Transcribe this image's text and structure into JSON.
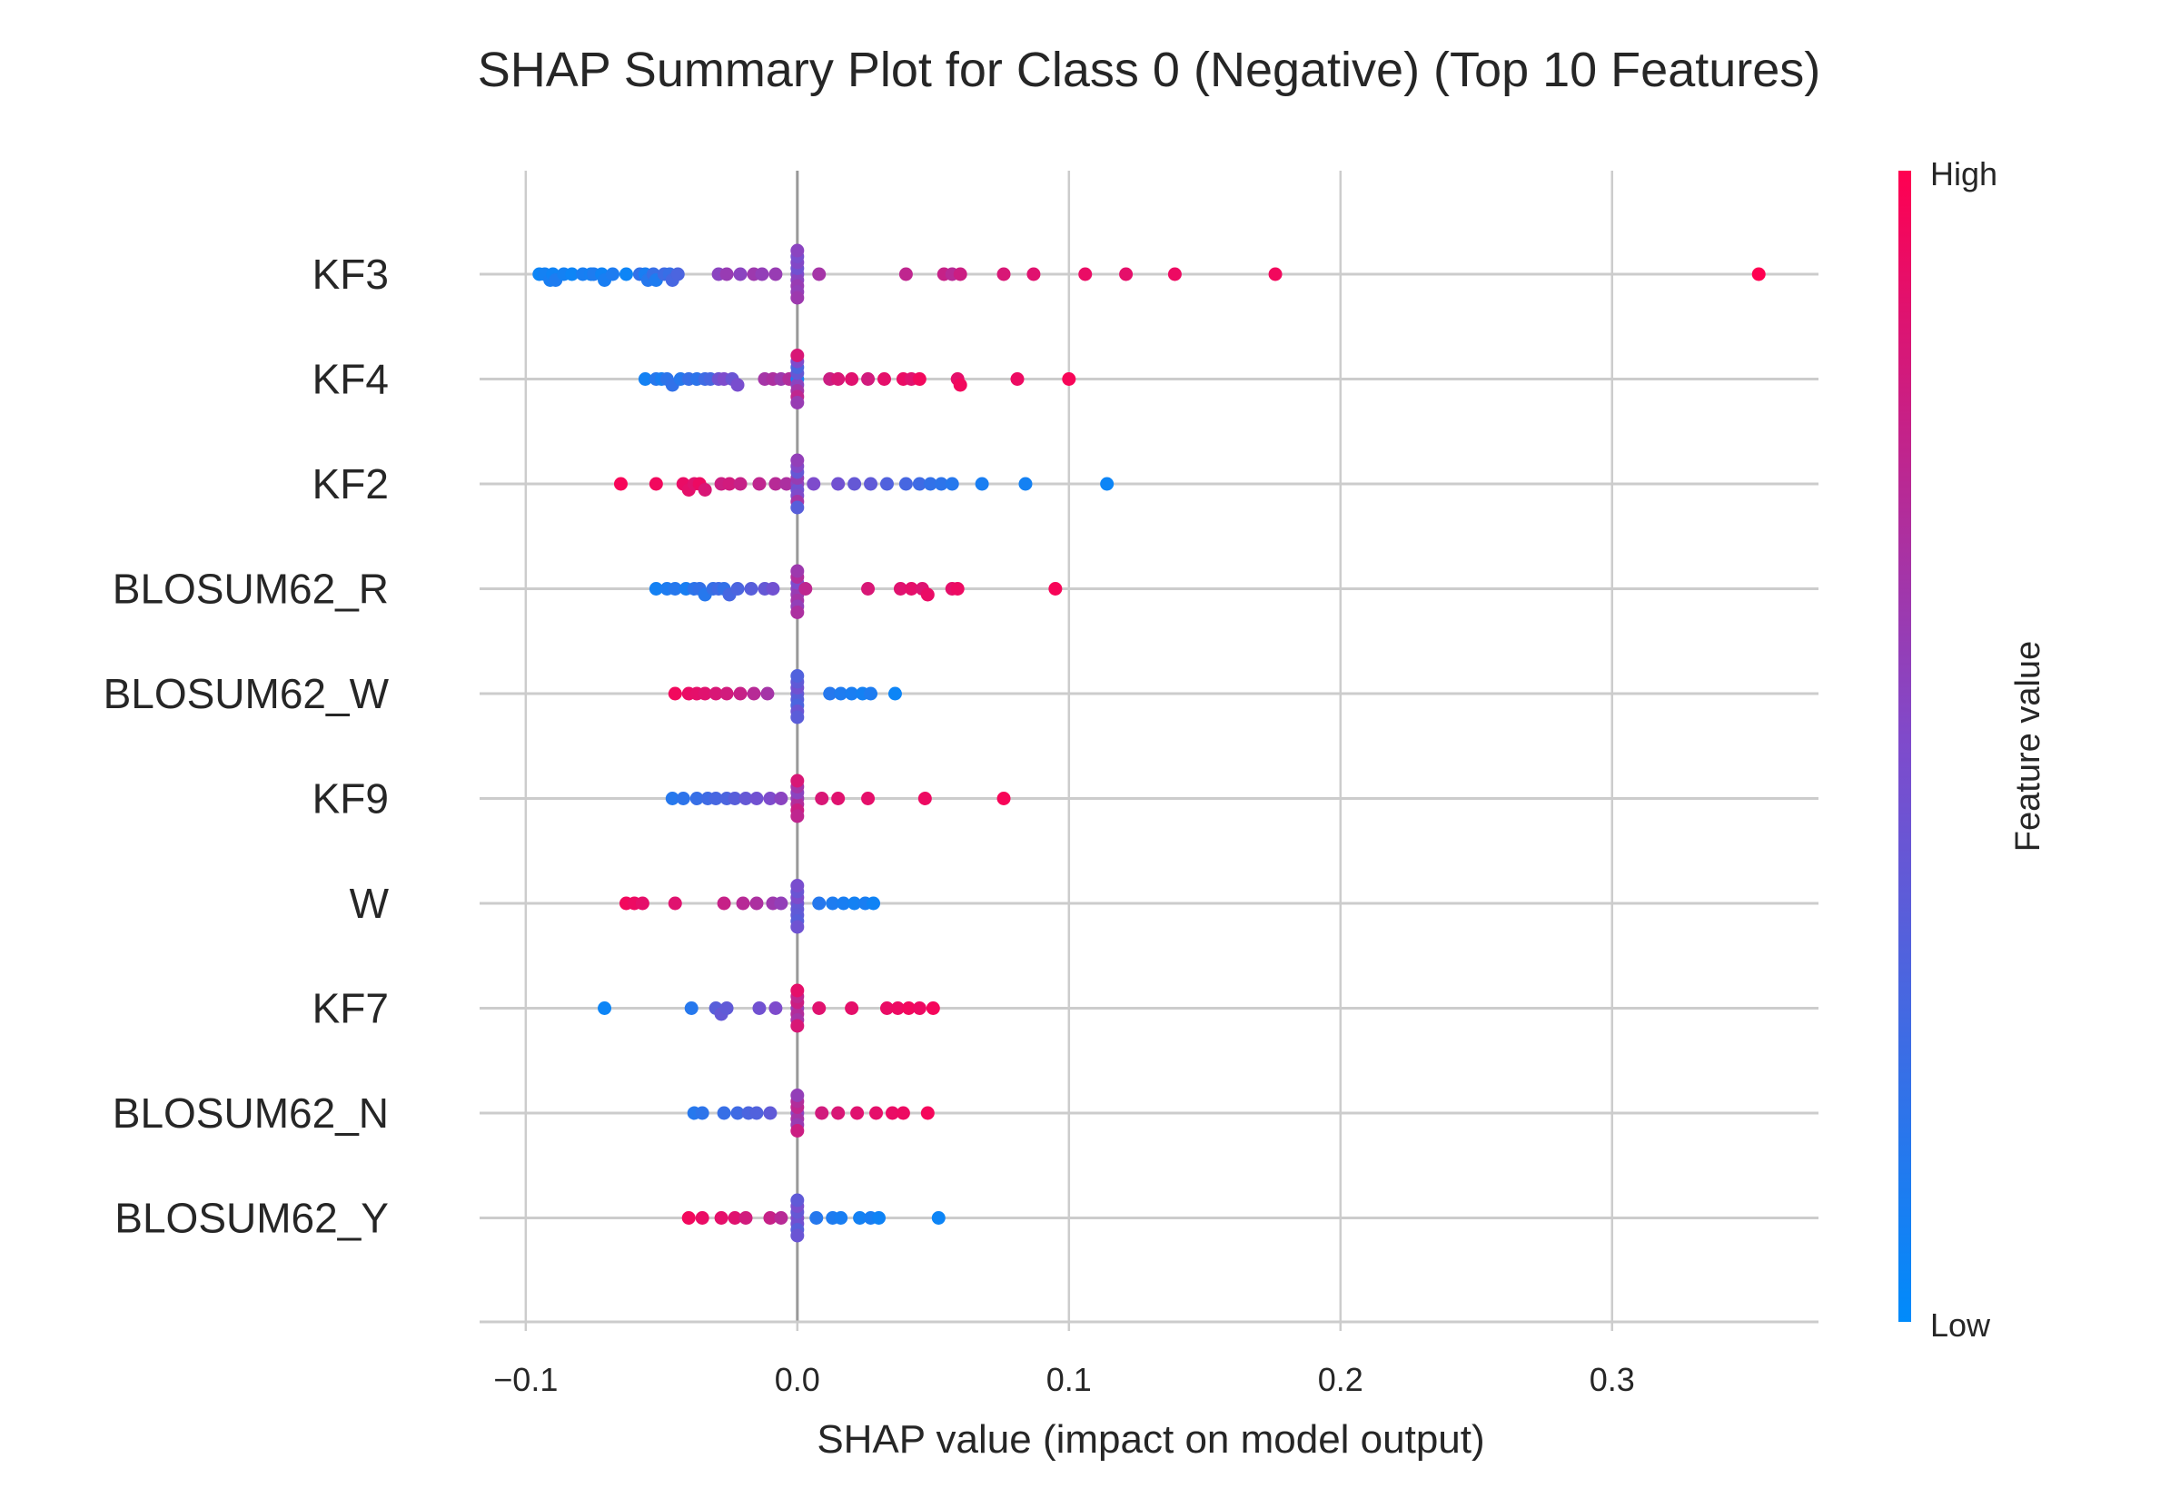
{
  "chart_data": {
    "type": "scatter",
    "title": "SHAP Summary Plot for Class 0 (Negative) (Top 10 Features)",
    "xlabel": "SHAP value (impact on model output)",
    "xlim": [
      -0.117,
      0.376
    ],
    "xticks": [
      {
        "value": -0.1,
        "label": "−0.1"
      },
      {
        "value": 0.0,
        "label": "0.0"
      },
      {
        "value": 0.1,
        "label": "0.1"
      },
      {
        "value": 0.2,
        "label": "0.2"
      },
      {
        "value": 0.3,
        "label": "0.3"
      }
    ],
    "grid": true,
    "colorbar": {
      "label": "Feature value",
      "high_label": "High",
      "low_label": "Low",
      "low_color": "#008bfb",
      "high_color": "#ff0051"
    },
    "features": [
      {
        "name": "KF3",
        "points": [
          [
            -0.095,
            0.05
          ],
          [
            -0.093,
            0.08
          ],
          [
            -0.091,
            0.1
          ],
          [
            -0.09,
            0.06
          ],
          [
            -0.089,
            0.12
          ],
          [
            -0.086,
            0.08
          ],
          [
            -0.083,
            0.05
          ],
          [
            -0.079,
            0.1
          ],
          [
            -0.076,
            0.08
          ],
          [
            -0.075,
            0.12
          ],
          [
            -0.072,
            0.06
          ],
          [
            -0.071,
            0.1
          ],
          [
            -0.068,
            0.12
          ],
          [
            -0.063,
            0.05
          ],
          [
            -0.058,
            0.2
          ],
          [
            -0.056,
            0.1
          ],
          [
            -0.055,
            0.15
          ],
          [
            -0.053,
            0.22
          ],
          [
            -0.052,
            0.12
          ],
          [
            -0.049,
            0.25
          ],
          [
            -0.047,
            0.22
          ],
          [
            -0.046,
            0.28
          ],
          [
            -0.044,
            0.3
          ],
          [
            -0.029,
            0.55
          ],
          [
            -0.026,
            0.6
          ],
          [
            -0.021,
            0.55
          ],
          [
            -0.016,
            0.62
          ],
          [
            -0.013,
            0.58
          ],
          [
            -0.008,
            0.6
          ],
          [
            0.0,
            0.5
          ],
          [
            0.0,
            0.55
          ],
          [
            0.0,
            0.45
          ],
          [
            0.0,
            0.6
          ],
          [
            0.0,
            0.52
          ],
          [
            0.0,
            0.58
          ],
          [
            0.0,
            0.48
          ],
          [
            0.0,
            0.62
          ],
          [
            0.0,
            0.55
          ],
          [
            0.008,
            0.65
          ],
          [
            0.04,
            0.75
          ],
          [
            0.054,
            0.78
          ],
          [
            0.057,
            0.72
          ],
          [
            0.06,
            0.8
          ],
          [
            0.076,
            0.85
          ],
          [
            0.087,
            0.88
          ],
          [
            0.106,
            0.92
          ],
          [
            0.121,
            0.9
          ],
          [
            0.139,
            0.93
          ],
          [
            0.176,
            0.95
          ],
          [
            0.354,
            1.0
          ]
        ]
      },
      {
        "name": "KF4",
        "points": [
          [
            -0.056,
            0.08
          ],
          [
            -0.052,
            0.15
          ],
          [
            -0.05,
            0.1
          ],
          [
            -0.048,
            0.18
          ],
          [
            -0.046,
            0.2
          ],
          [
            -0.043,
            0.15
          ],
          [
            -0.04,
            0.22
          ],
          [
            -0.037,
            0.18
          ],
          [
            -0.034,
            0.25
          ],
          [
            -0.032,
            0.28
          ],
          [
            -0.029,
            0.45
          ],
          [
            -0.027,
            0.5
          ],
          [
            -0.024,
            0.42
          ],
          [
            -0.022,
            0.48
          ],
          [
            -0.012,
            0.65
          ],
          [
            -0.009,
            0.68
          ],
          [
            -0.006,
            0.62
          ],
          [
            -0.003,
            0.7
          ],
          [
            0.0,
            0.1
          ],
          [
            0.0,
            0.55
          ],
          [
            0.0,
            0.4
          ],
          [
            0.0,
            0.65
          ],
          [
            0.0,
            0.3
          ],
          [
            0.0,
            0.75
          ],
          [
            0.0,
            0.5
          ],
          [
            0.0,
            0.6
          ],
          [
            0.0,
            0.85
          ],
          [
            0.012,
            0.8
          ],
          [
            0.015,
            0.85
          ],
          [
            0.02,
            0.88
          ],
          [
            0.026,
            0.82
          ],
          [
            0.032,
            0.9
          ],
          [
            0.039,
            0.92
          ],
          [
            0.042,
            0.88
          ],
          [
            0.045,
            0.95
          ],
          [
            0.059,
            0.9
          ],
          [
            0.06,
            0.95
          ],
          [
            0.081,
            0.93
          ],
          [
            0.1,
            0.97
          ]
        ]
      },
      {
        "name": "KF2",
        "points": [
          [
            -0.065,
            0.97
          ],
          [
            -0.052,
            0.95
          ],
          [
            -0.042,
            0.92
          ],
          [
            -0.04,
            0.9
          ],
          [
            -0.038,
            0.88
          ],
          [
            -0.036,
            0.93
          ],
          [
            -0.034,
            0.85
          ],
          [
            -0.028,
            0.8
          ],
          [
            -0.025,
            0.82
          ],
          [
            -0.021,
            0.78
          ],
          [
            -0.014,
            0.75
          ],
          [
            -0.008,
            0.72
          ],
          [
            -0.004,
            0.68
          ],
          [
            0.0,
            0.55
          ],
          [
            0.0,
            0.45
          ],
          [
            0.0,
            0.6
          ],
          [
            0.0,
            0.5
          ],
          [
            0.0,
            0.4
          ],
          [
            0.0,
            0.65
          ],
          [
            0.0,
            0.52
          ],
          [
            0.0,
            0.35
          ],
          [
            0.0,
            0.58
          ],
          [
            0.006,
            0.5
          ],
          [
            0.015,
            0.45
          ],
          [
            0.021,
            0.4
          ],
          [
            0.027,
            0.38
          ],
          [
            0.033,
            0.32
          ],
          [
            0.04,
            0.28
          ],
          [
            0.045,
            0.25
          ],
          [
            0.049,
            0.2
          ],
          [
            0.053,
            0.18
          ],
          [
            0.057,
            0.15
          ],
          [
            0.068,
            0.1
          ],
          [
            0.084,
            0.08
          ],
          [
            0.114,
            0.05
          ]
        ]
      },
      {
        "name": "BLOSUM62_R",
        "points": [
          [
            -0.052,
            0.08
          ],
          [
            -0.048,
            0.12
          ],
          [
            -0.045,
            0.15
          ],
          [
            -0.041,
            0.1
          ],
          [
            -0.038,
            0.18
          ],
          [
            -0.036,
            0.2
          ],
          [
            -0.034,
            0.15
          ],
          [
            -0.031,
            0.22
          ],
          [
            -0.029,
            0.25
          ],
          [
            -0.027,
            0.2
          ],
          [
            -0.025,
            0.28
          ],
          [
            -0.022,
            0.3
          ],
          [
            -0.017,
            0.35
          ],
          [
            -0.012,
            0.4
          ],
          [
            -0.009,
            0.45
          ],
          [
            0.0,
            0.55
          ],
          [
            0.0,
            0.6
          ],
          [
            0.0,
            0.5
          ],
          [
            0.0,
            0.65
          ],
          [
            0.0,
            0.7
          ],
          [
            0.0,
            0.58
          ],
          [
            0.0,
            0.62
          ],
          [
            0.0,
            0.68
          ],
          [
            0.003,
            0.75
          ],
          [
            0.026,
            0.85
          ],
          [
            0.038,
            0.88
          ],
          [
            0.042,
            0.9
          ],
          [
            0.046,
            0.87
          ],
          [
            0.048,
            0.92
          ],
          [
            0.057,
            0.9
          ],
          [
            0.059,
            0.93
          ],
          [
            0.095,
            0.97
          ]
        ]
      },
      {
        "name": "BLOSUM62_W",
        "points": [
          [
            -0.045,
            0.95
          ],
          [
            -0.04,
            0.92
          ],
          [
            -0.037,
            0.9
          ],
          [
            -0.034,
            0.88
          ],
          [
            -0.03,
            0.85
          ],
          [
            -0.026,
            0.82
          ],
          [
            -0.021,
            0.78
          ],
          [
            -0.016,
            0.72
          ],
          [
            -0.011,
            0.65
          ],
          [
            0.0,
            0.4
          ],
          [
            0.0,
            0.35
          ],
          [
            0.0,
            0.45
          ],
          [
            0.0,
            0.3
          ],
          [
            0.0,
            0.38
          ],
          [
            0.0,
            0.42
          ],
          [
            0.0,
            0.32
          ],
          [
            0.0,
            0.36
          ],
          [
            0.012,
            0.15
          ],
          [
            0.016,
            0.12
          ],
          [
            0.02,
            0.1
          ],
          [
            0.024,
            0.08
          ],
          [
            0.027,
            0.12
          ],
          [
            0.036,
            0.05
          ]
        ]
      },
      {
        "name": "KF9",
        "points": [
          [
            -0.046,
            0.15
          ],
          [
            -0.042,
            0.18
          ],
          [
            -0.037,
            0.22
          ],
          [
            -0.033,
            0.25
          ],
          [
            -0.03,
            0.28
          ],
          [
            -0.026,
            0.3
          ],
          [
            -0.023,
            0.35
          ],
          [
            -0.019,
            0.4
          ],
          [
            -0.015,
            0.45
          ],
          [
            -0.01,
            0.5
          ],
          [
            -0.006,
            0.55
          ],
          [
            0.0,
            0.6
          ],
          [
            0.0,
            0.7
          ],
          [
            0.0,
            0.55
          ],
          [
            0.0,
            0.8
          ],
          [
            0.0,
            0.65
          ],
          [
            0.0,
            0.75
          ],
          [
            0.0,
            0.85
          ],
          [
            0.009,
            0.85
          ],
          [
            0.015,
            0.88
          ],
          [
            0.026,
            0.9
          ],
          [
            0.047,
            0.93
          ],
          [
            0.076,
            0.97
          ]
        ]
      },
      {
        "name": "W",
        "points": [
          [
            -0.063,
            0.95
          ],
          [
            -0.06,
            0.93
          ],
          [
            -0.057,
            0.9
          ],
          [
            -0.045,
            0.88
          ],
          [
            -0.027,
            0.78
          ],
          [
            -0.02,
            0.72
          ],
          [
            -0.015,
            0.68
          ],
          [
            -0.009,
            0.62
          ],
          [
            -0.006,
            0.58
          ],
          [
            0.0,
            0.45
          ],
          [
            0.0,
            0.4
          ],
          [
            0.0,
            0.5
          ],
          [
            0.0,
            0.38
          ],
          [
            0.0,
            0.42
          ],
          [
            0.0,
            0.35
          ],
          [
            0.0,
            0.48
          ],
          [
            0.0,
            0.44
          ],
          [
            0.008,
            0.15
          ],
          [
            0.013,
            0.12
          ],
          [
            0.017,
            0.1
          ],
          [
            0.021,
            0.08
          ],
          [
            0.025,
            0.1
          ],
          [
            0.028,
            0.06
          ]
        ]
      },
      {
        "name": "KF7",
        "points": [
          [
            -0.071,
            0.05
          ],
          [
            -0.039,
            0.15
          ],
          [
            -0.03,
            0.35
          ],
          [
            -0.028,
            0.4
          ],
          [
            -0.026,
            0.38
          ],
          [
            -0.014,
            0.45
          ],
          [
            -0.008,
            0.5
          ],
          [
            0.0,
            0.6
          ],
          [
            0.0,
            0.7
          ],
          [
            0.0,
            0.8
          ],
          [
            0.0,
            0.65
          ],
          [
            0.0,
            0.75
          ],
          [
            0.0,
            0.85
          ],
          [
            0.0,
            0.9
          ],
          [
            0.008,
            0.88
          ],
          [
            0.02,
            0.9
          ],
          [
            0.033,
            0.92
          ],
          [
            0.037,
            0.93
          ],
          [
            0.041,
            0.95
          ],
          [
            0.045,
            0.93
          ],
          [
            0.05,
            0.96
          ]
        ]
      },
      {
        "name": "BLOSUM62_N",
        "points": [
          [
            -0.038,
            0.15
          ],
          [
            -0.035,
            0.18
          ],
          [
            -0.027,
            0.22
          ],
          [
            -0.022,
            0.25
          ],
          [
            -0.018,
            0.3
          ],
          [
            -0.015,
            0.32
          ],
          [
            -0.01,
            0.38
          ],
          [
            0.0,
            0.55
          ],
          [
            0.0,
            0.65
          ],
          [
            0.0,
            0.75
          ],
          [
            0.0,
            0.6
          ],
          [
            0.0,
            0.7
          ],
          [
            0.0,
            0.8
          ],
          [
            0.0,
            0.58
          ],
          [
            0.009,
            0.82
          ],
          [
            0.015,
            0.85
          ],
          [
            0.022,
            0.88
          ],
          [
            0.029,
            0.9
          ],
          [
            0.035,
            0.92
          ],
          [
            0.039,
            0.93
          ],
          [
            0.048,
            0.96
          ]
        ]
      },
      {
        "name": "BLOSUM62_Y",
        "points": [
          [
            -0.04,
            0.95
          ],
          [
            -0.035,
            0.92
          ],
          [
            -0.028,
            0.9
          ],
          [
            -0.023,
            0.88
          ],
          [
            -0.019,
            0.82
          ],
          [
            -0.01,
            0.78
          ],
          [
            -0.006,
            0.72
          ],
          [
            0.0,
            0.5
          ],
          [
            0.0,
            0.45
          ],
          [
            0.0,
            0.4
          ],
          [
            0.0,
            0.35
          ],
          [
            0.0,
            0.48
          ],
          [
            0.0,
            0.42
          ],
          [
            0.0,
            0.38
          ],
          [
            0.007,
            0.15
          ],
          [
            0.013,
            0.12
          ],
          [
            0.016,
            0.1
          ],
          [
            0.023,
            0.08
          ],
          [
            0.027,
            0.1
          ],
          [
            0.03,
            0.06
          ],
          [
            0.052,
            0.05
          ]
        ]
      }
    ]
  }
}
